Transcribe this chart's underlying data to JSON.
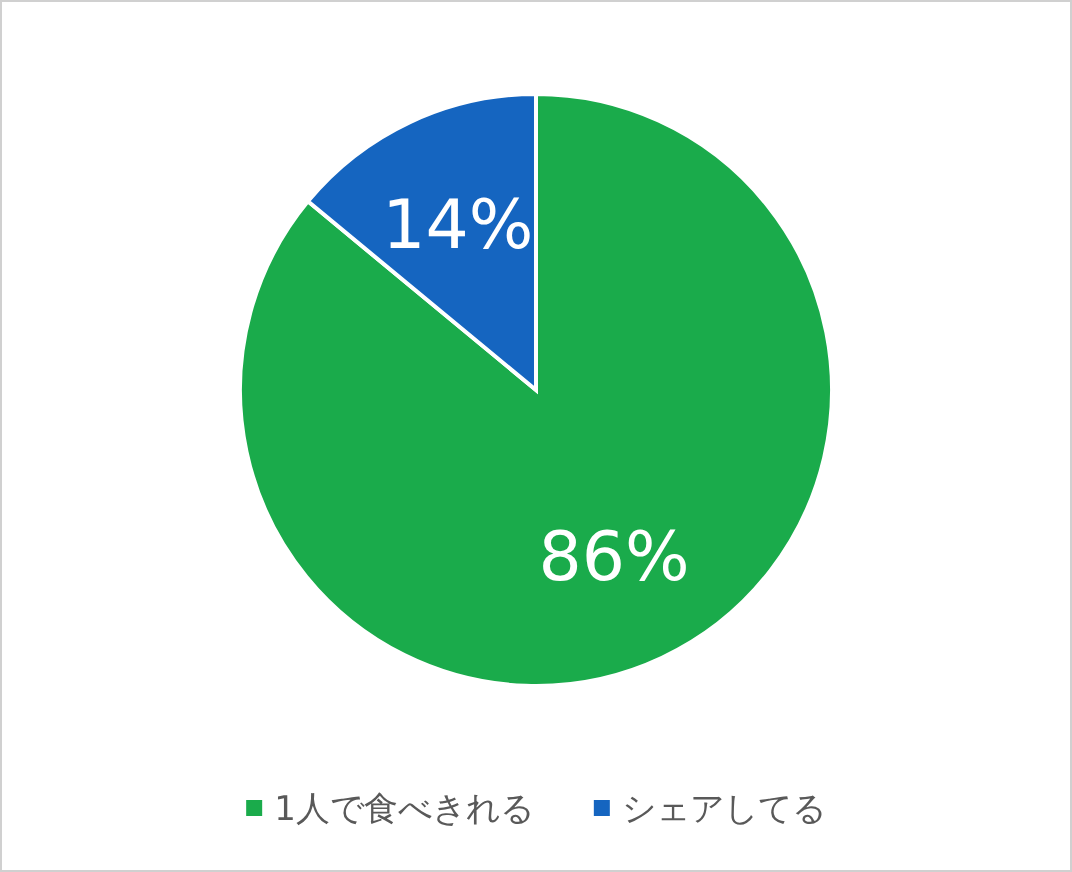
{
  "chart_data": {
    "type": "pie",
    "categories": [
      "1人で食べきれる",
      "シェアしてる"
    ],
    "values": [
      86,
      14
    ],
    "colors": [
      "#1aab4b",
      "#1565c0"
    ],
    "value_labels": [
      "86%",
      "14%"
    ],
    "legend": "bottom"
  }
}
